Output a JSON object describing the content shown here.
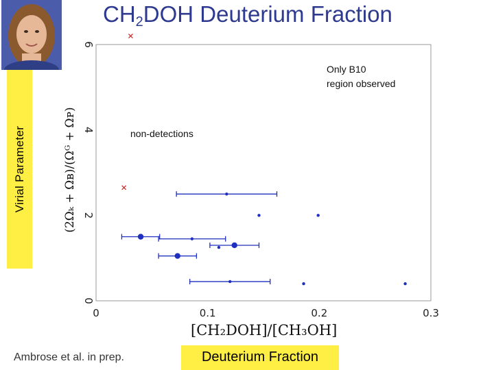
{
  "title": {
    "main": "CH",
    "sub": "2",
    "rest": "DOH Deuterium Fraction"
  },
  "photo": {
    "description_icon": "person-photo"
  },
  "ylabel": "Virial Parameter",
  "yformula": "(2Ωₖ + Ωʙ)/(Ωᴳ + Ωᴘ)",
  "xformula": "[CH₂DOH]/[CH₃OH]",
  "footer": {
    "credit": "Ambrose et al. in prep.",
    "xlabel": "Deuterium Fraction"
  },
  "chart_data": {
    "type": "scatter",
    "xlim": [
      0,
      0.3
    ],
    "ylim": [
      0,
      6
    ],
    "xticks": [
      "0",
      "0.1",
      "0.2",
      "0.3"
    ],
    "xtick_values": [
      0,
      0.1,
      0.2,
      0.3
    ],
    "yticks": [
      "0",
      "2",
      "4",
      "6"
    ],
    "ytick_values": [
      0,
      2,
      4,
      6
    ],
    "grid": false,
    "annotations": [
      "Only B10\nregion observed",
      "non-detections"
    ],
    "points": [
      {
        "x": 0.117,
        "y": 2.5,
        "xerr": 0.045,
        "size": "small"
      },
      {
        "x": 0.146,
        "y": 2.0,
        "xerr": 0,
        "size": "small"
      },
      {
        "x": 0.199,
        "y": 2.0,
        "xerr": 0,
        "size": "small"
      },
      {
        "x": 0.04,
        "y": 1.5,
        "xerr": 0.017,
        "size": "large"
      },
      {
        "x": 0.086,
        "y": 1.45,
        "xerr": 0.03,
        "size": "small"
      },
      {
        "x": 0.124,
        "y": 1.3,
        "xerr": 0.022,
        "size": "large"
      },
      {
        "x": 0.11,
        "y": 1.25,
        "xerr": 0,
        "size": "small"
      },
      {
        "x": 0.073,
        "y": 1.05,
        "xerr": 0.017,
        "size": "large"
      },
      {
        "x": 0.12,
        "y": 0.45,
        "xerr": 0.036,
        "size": "small"
      },
      {
        "x": 0.186,
        "y": 0.4,
        "xerr": 0,
        "size": "small"
      },
      {
        "x": 0.277,
        "y": 0.4,
        "xerr": 0,
        "size": "small"
      }
    ],
    "non_detections": [
      {
        "x": 0.031,
        "y": 6.2
      },
      {
        "x": 0.025,
        "y": 2.65
      }
    ],
    "colors": {
      "points": "#1f2fbf",
      "non_detections": "#cc2222",
      "axes": "#888888"
    }
  }
}
